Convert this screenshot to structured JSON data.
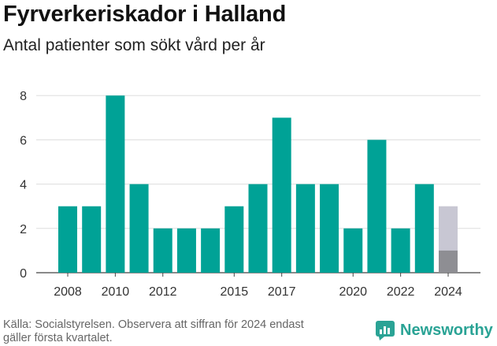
{
  "title": "Fyrverkeriskador i Halland",
  "subtitle": "Antal patienter som sökt vård per år",
  "footer": {
    "source_line1": "Källa: Socialstyrelsen. Observera att siffran för 2024 endast",
    "source_line2": "gäller första kvartalet.",
    "brand": "Newsworthy"
  },
  "colors": {
    "bar": "#00a296",
    "partial_bar": "#8e8e93",
    "projected_bar": "#c8c7d3",
    "grid": "#dddddd",
    "brand": "#2aa395"
  },
  "chart_data": {
    "type": "bar",
    "categories": [
      "2008",
      "2009",
      "2010",
      "2011",
      "2012",
      "2013",
      "2014",
      "2015",
      "2016",
      "2017",
      "2018",
      "2019",
      "2020",
      "2021",
      "2022",
      "2023",
      "2024"
    ],
    "values": [
      3,
      3,
      8,
      4,
      2,
      2,
      2,
      3,
      4,
      7,
      4,
      4,
      2,
      6,
      2,
      4,
      1
    ],
    "projected_values": [
      null,
      null,
      null,
      null,
      null,
      null,
      null,
      null,
      null,
      null,
      null,
      null,
      null,
      null,
      null,
      null,
      3
    ],
    "xtick_labels": [
      "2008",
      "2010",
      "2012",
      "2015",
      "2017",
      "2020",
      "2022",
      "2024"
    ],
    "yticks": [
      0,
      2,
      4,
      6,
      8
    ],
    "ylim": [
      0,
      8.4
    ],
    "grid": true,
    "xlabel": "",
    "ylabel": ""
  }
}
